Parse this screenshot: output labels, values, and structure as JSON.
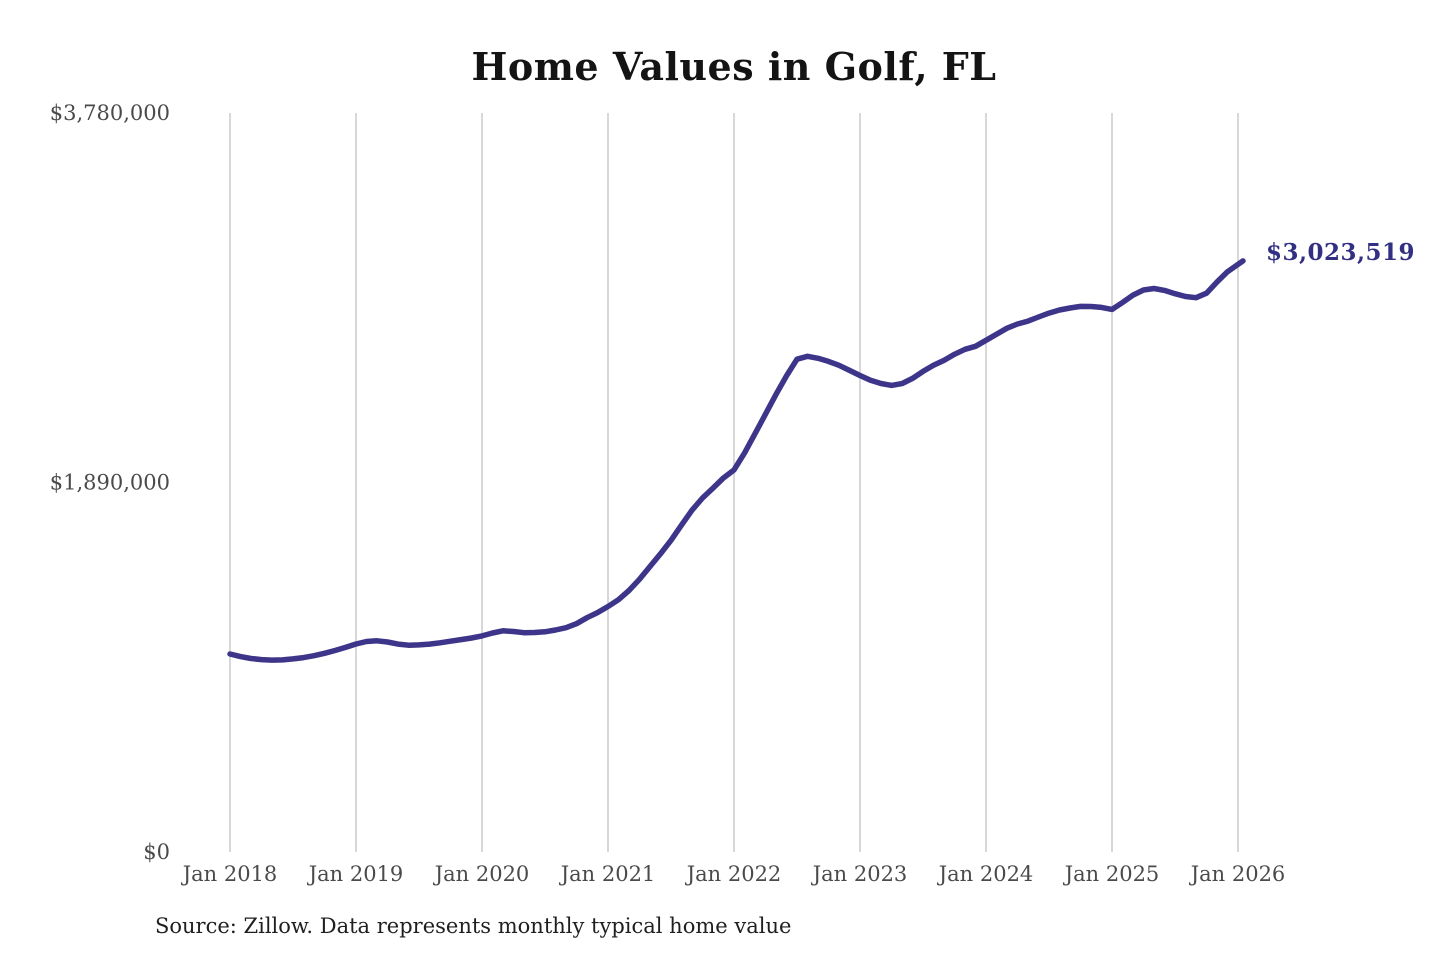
{
  "page": {
    "title": "Home Values in Golf, FL",
    "source": "Source: Zillow. Data represents monthly typical home value"
  },
  "chart_data": {
    "type": "line",
    "title": "Home Values in Golf, FL",
    "series_name": "Monthly typical home value",
    "x": [
      "2018-01",
      "2018-02",
      "2018-03",
      "2018-04",
      "2018-05",
      "2018-06",
      "2018-07",
      "2018-08",
      "2018-09",
      "2018-10",
      "2018-11",
      "2018-12",
      "2019-01",
      "2019-02",
      "2019-03",
      "2019-04",
      "2019-05",
      "2019-06",
      "2019-07",
      "2019-08",
      "2019-09",
      "2019-10",
      "2019-11",
      "2019-12",
      "2020-01",
      "2020-02",
      "2020-03",
      "2020-04",
      "2020-05",
      "2020-06",
      "2020-07",
      "2020-08",
      "2020-09",
      "2020-10",
      "2020-11",
      "2020-12",
      "2021-01",
      "2021-02",
      "2021-03",
      "2021-04",
      "2021-05",
      "2021-06",
      "2021-07",
      "2021-08",
      "2021-09",
      "2021-10",
      "2021-11",
      "2021-12",
      "2022-01",
      "2022-02",
      "2022-03",
      "2022-04",
      "2022-05",
      "2022-06",
      "2022-07",
      "2022-08",
      "2022-09",
      "2022-10",
      "2022-11",
      "2022-12",
      "2023-01",
      "2023-02",
      "2023-03",
      "2023-04",
      "2023-05",
      "2023-06",
      "2023-07",
      "2023-08",
      "2023-09",
      "2023-10",
      "2023-11",
      "2023-12",
      "2024-01",
      "2024-02",
      "2024-03",
      "2024-04",
      "2024-05",
      "2024-06",
      "2024-07",
      "2024-08",
      "2024-09",
      "2024-10",
      "2024-11",
      "2024-12",
      "2025-01",
      "2025-02",
      "2025-03",
      "2025-04",
      "2025-05",
      "2025-06",
      "2025-07",
      "2025-08",
      "2025-09",
      "2025-10",
      "2025-11",
      "2025-12",
      "2026-01"
    ],
    "values": [
      1013000,
      999500,
      990000,
      984000,
      981500,
      982500,
      987500,
      994500,
      1004000,
      1016500,
      1030500,
      1046500,
      1064000,
      1076500,
      1080500,
      1074000,
      1063500,
      1058000,
      1059500,
      1063500,
      1070000,
      1078500,
      1086500,
      1094500,
      1105500,
      1120000,
      1131500,
      1128000,
      1121500,
      1122500,
      1126500,
      1135500,
      1147500,
      1168000,
      1198500,
      1224500,
      1255500,
      1290500,
      1337500,
      1395000,
      1460500,
      1525500,
      1594500,
      1672000,
      1748500,
      1810500,
      1861500,
      1913500,
      1954500,
      2040500,
      2139500,
      2240000,
      2340500,
      2435500,
      2520500,
      2535500,
      2525500,
      2509500,
      2489500,
      2463500,
      2437500,
      2412500,
      2396500,
      2386500,
      2396000,
      2422500,
      2458500,
      2489500,
      2514500,
      2545500,
      2571500,
      2586500,
      2617500,
      2648500,
      2679500,
      2700500,
      2715500,
      2736500,
      2756500,
      2772500,
      2782500,
      2790500,
      2790000,
      2785500,
      2775500,
      2810500,
      2848500,
      2874500,
      2882500,
      2872500,
      2855500,
      2841500,
      2835500,
      2858500,
      2915500,
      2968500,
      3023519
    ],
    "x_ticks": [
      "Jan 2018",
      "Jan 2019",
      "Jan 2020",
      "Jan 2021",
      "Jan 2022",
      "Jan 2023",
      "Jan 2024",
      "Jan 2025",
      "Jan 2026"
    ],
    "y_ticks": [
      {
        "value": 0,
        "label": "$0"
      },
      {
        "value": 1890000,
        "label": "$1,890,000"
      },
      {
        "value": 3780000,
        "label": "$3,780,000"
      }
    ],
    "ylim": [
      0,
      3780000
    ],
    "grid": true,
    "grid_orientation": "vertical",
    "legend": false,
    "end_label": "$3,023,519",
    "source": "Source: Zillow. Data represents monthly typical home value",
    "line_color": "#3d3589",
    "grid_color": "#cbcbcb",
    "annotation_color": "#333084",
    "tick_color": "#4a4a4a"
  }
}
